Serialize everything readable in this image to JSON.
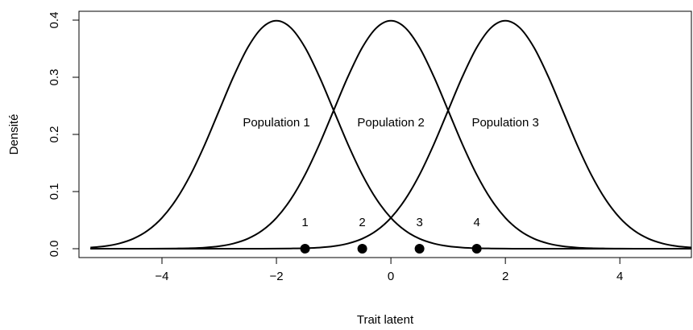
{
  "chart_data": {
    "type": "line",
    "xlabel": "Trait latent",
    "ylabel": "Densité",
    "xlim": [
      -5.45,
      5.25
    ],
    "ylim": [
      -0.0155,
      0.4155
    ],
    "xticks": [
      {
        "value": -4,
        "label": "−4"
      },
      {
        "value": -2,
        "label": "−2"
      },
      0,
      2,
      4
    ],
    "yticks": [
      {
        "value": 0,
        "label": "0.0"
      },
      0.1,
      0.2,
      0.3,
      0.4
    ],
    "color": "#000000",
    "x": [
      -5.25,
      -5,
      -4.75,
      -4.5,
      -4.25,
      -4,
      -3.75,
      -3.5,
      -3.25,
      -3,
      -2.75,
      -2.5,
      -2.25,
      -2,
      -1.75,
      -1.5,
      -1.25,
      -1,
      -0.75,
      -0.5,
      -0.25,
      0,
      0.25,
      0.5,
      0.75,
      1,
      1.25,
      1.5,
      1.75,
      2,
      2.25,
      2.5,
      2.75,
      3,
      3.25,
      3.5,
      3.75,
      4,
      4.25,
      4.5,
      4.75,
      5,
      5.25
    ],
    "series": [
      {
        "name": "Population 1",
        "label_x": -2,
        "label_y": 0.22,
        "values": [
          0.002,
          0.0044,
          0.0091,
          0.0175,
          0.0317,
          0.054,
          0.0863,
          0.1295,
          0.1826,
          0.242,
          0.3011,
          0.3521,
          0.3867,
          0.3989,
          0.3867,
          0.3521,
          0.3011,
          0.242,
          0.1826,
          0.1295,
          0.0863,
          0.054,
          0.0317,
          0.0175,
          0.0091,
          0.0044,
          0.002,
          0.0009,
          0.0004,
          0.0001,
          0,
          0,
          0,
          0,
          0,
          0,
          0,
          0,
          0,
          0,
          0,
          0,
          0
        ]
      },
      {
        "name": "Population 2",
        "label_x": 0,
        "label_y": 0.22,
        "values": [
          0,
          0,
          0,
          0,
          0,
          0.0001,
          0.0004,
          0.0009,
          0.002,
          0.0044,
          0.0091,
          0.0175,
          0.0317,
          0.054,
          0.0863,
          0.1295,
          0.1826,
          0.242,
          0.3011,
          0.3521,
          0.3867,
          0.3989,
          0.3867,
          0.3521,
          0.3011,
          0.242,
          0.1826,
          0.1295,
          0.0863,
          0.054,
          0.0317,
          0.0175,
          0.0091,
          0.0044,
          0.002,
          0.0009,
          0.0004,
          0.0001,
          0,
          0,
          0,
          0,
          0
        ]
      },
      {
        "name": "Population 3",
        "label_x": 2,
        "label_y": 0.22,
        "values": [
          0,
          0,
          0,
          0,
          0,
          0,
          0,
          0,
          0,
          0,
          0,
          0,
          0,
          0.0001,
          0.0004,
          0.0009,
          0.002,
          0.0044,
          0.0091,
          0.0175,
          0.0317,
          0.054,
          0.0863,
          0.1295,
          0.1826,
          0.242,
          0.3011,
          0.3521,
          0.3867,
          0.3989,
          0.3867,
          0.3521,
          0.3011,
          0.242,
          0.1826,
          0.1295,
          0.0863,
          0.054,
          0.0317,
          0.0175,
          0.0091,
          0.0044,
          0.002
        ]
      }
    ],
    "points": {
      "x": [
        -1.5,
        -0.5,
        0.5,
        1.5
      ],
      "y": [
        0,
        0,
        0,
        0
      ],
      "labels": [
        "1",
        "2",
        "3",
        "4"
      ]
    }
  }
}
